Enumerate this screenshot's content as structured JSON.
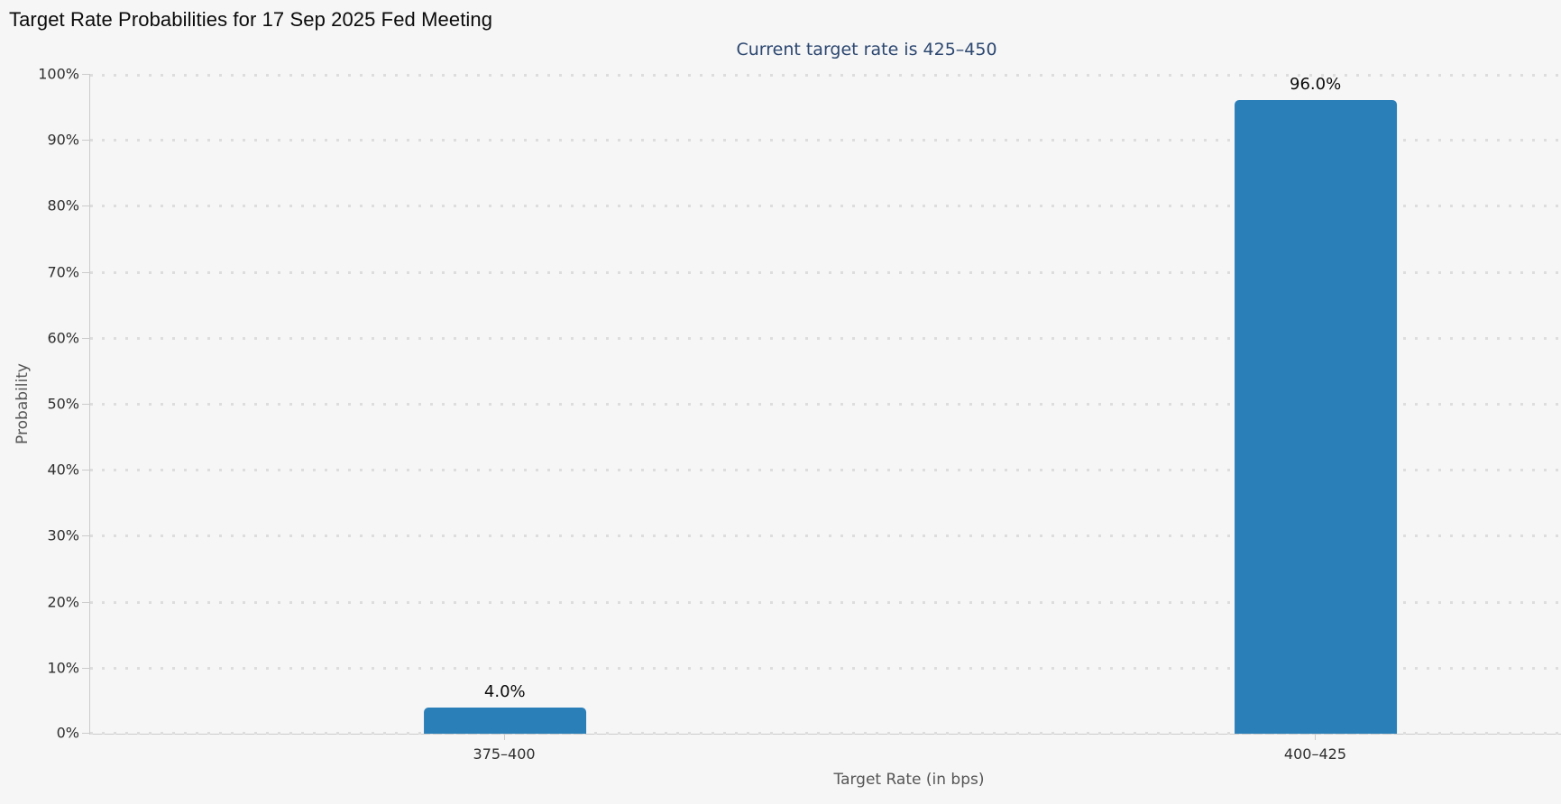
{
  "title": "Target Rate Probabilities for 17 Sep 2025 Fed Meeting",
  "subtitle": "Current target rate is 425–450",
  "colors": {
    "background": "#f6f6f6",
    "bar": "#2a7fb9",
    "subtitle_text": "#2c4770",
    "axis_line": "#cbcbcb",
    "gridline": "#dddddd",
    "tick_text": "#2f2f2f",
    "axis_title_text": "#565656",
    "title_text": "#0b0b0b"
  },
  "chart_data": {
    "type": "bar",
    "title": "Target Rate Probabilities for 17 Sep 2025 Fed Meeting",
    "subtitle": "Current target rate is 425–450",
    "categories": [
      "375–400",
      "400–425"
    ],
    "values": [
      4.0,
      96.0
    ],
    "value_labels": [
      "4.0%",
      "96.0%"
    ],
    "xlabel": "Target Rate (in bps)",
    "ylabel": "Probability",
    "ylim": [
      0,
      100
    ],
    "ytick_values": [
      0,
      10,
      20,
      30,
      40,
      50,
      60,
      70,
      80,
      90,
      100
    ],
    "ytick_labels": [
      "0%",
      "10%",
      "20%",
      "30%",
      "40%",
      "50%",
      "60%",
      "70%",
      "80%",
      "90%",
      "100%"
    ],
    "grid": "horizontal-dotted",
    "legend": "none",
    "bar_color": "#2a7fb9",
    "layout": {
      "bar_center_pct": [
        28.19,
        83.3
      ],
      "bar_width_pct": 11.03
    }
  }
}
